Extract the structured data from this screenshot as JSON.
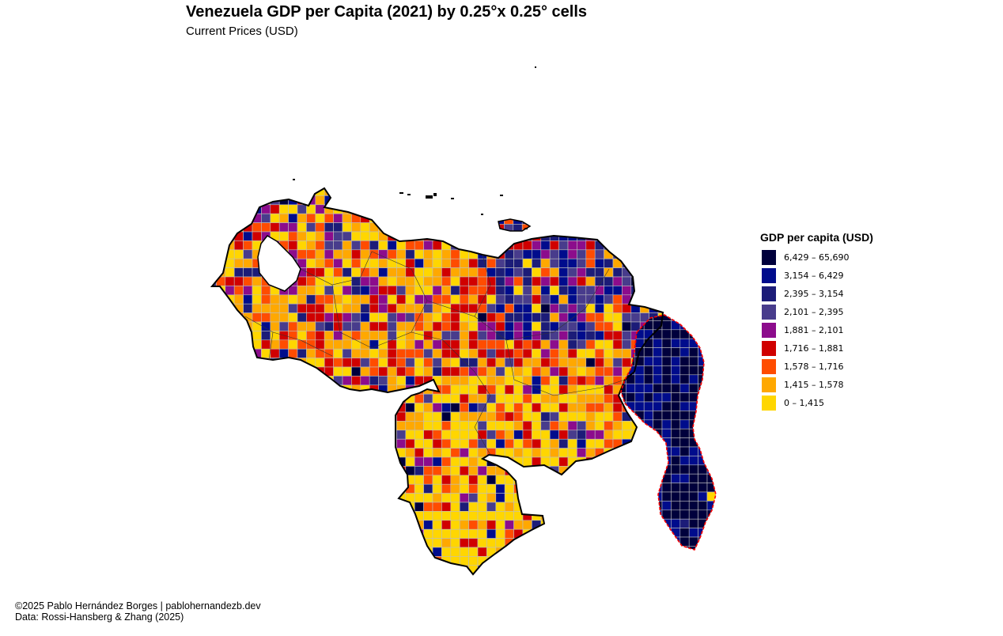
{
  "title": "Venezuela GDP per Capita (2021) by 0.25°x 0.25° cells",
  "subtitle": "Current Prices (USD)",
  "legend": {
    "title": "GDP per capita (USD)",
    "classes": [
      {
        "label": "6,429 – 65,690",
        "color": "#00003C"
      },
      {
        "label": "3,154 – 6,429",
        "color": "#000C8C"
      },
      {
        "label": "2,395 – 3,154",
        "color": "#1C1C78"
      },
      {
        "label": "2,101 – 2,395",
        "color": "#483C8C"
      },
      {
        "label": "1,881 – 2,101",
        "color": "#8C0C8C"
      },
      {
        "label": "1,716 – 1,881",
        "color": "#D00000"
      },
      {
        "label": "1,578 – 1,716",
        "color": "#FF4C00"
      },
      {
        "label": "1,415 – 1,578",
        "color": "#FFA800"
      },
      {
        "label": "0 – 1,415",
        "color": "#FFD600"
      }
    ]
  },
  "map": {
    "country_border_color": "#000000",
    "disputed_border_color": "#FF0000",
    "cell_grid_color": "#BFBFBF"
  },
  "credits": {
    "line1": "©2025 Pablo Hernández Borges | pablohernandezb.dev",
    "line2": "Data: Rossi-Hansberg & Zhang (2025)"
  }
}
